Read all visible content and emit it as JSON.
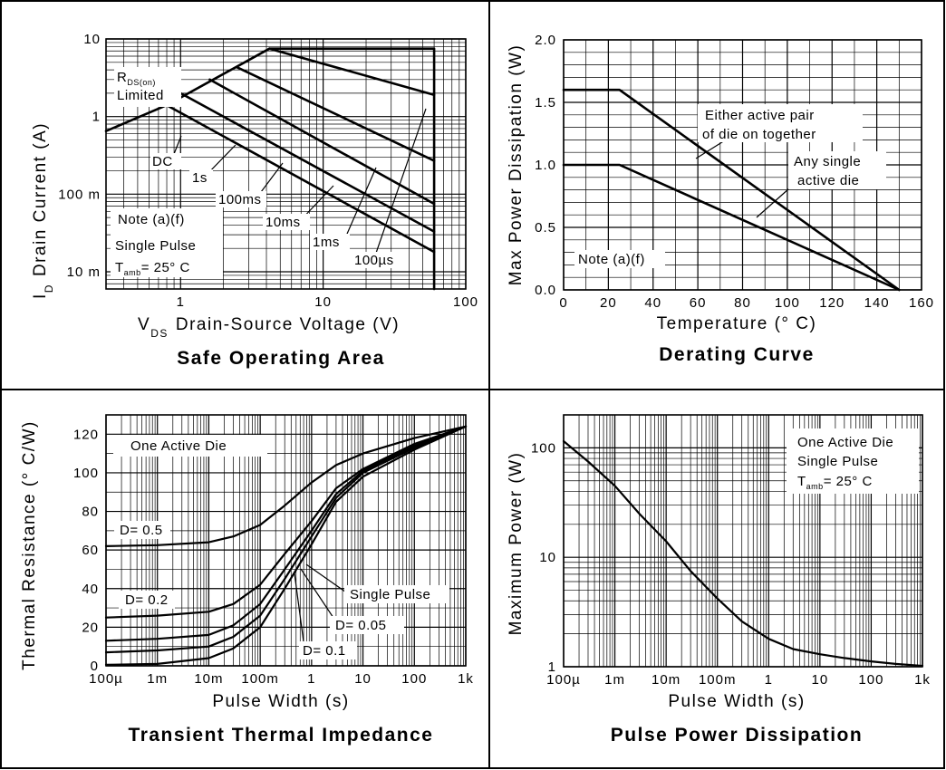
{
  "chart_data": [
    {
      "type": "line",
      "title": "Safe Operating Area",
      "xlabel_prefix": "V",
      "xlabel_sub": "DS",
      "xlabel": "Drain-Source Voltage (V)",
      "ylabel_prefix": "I",
      "ylabel_sub": "D",
      "ylabel": "Drain Current (A)",
      "xscale": "log",
      "yscale": "log",
      "xlim": [
        0.3,
        100
      ],
      "ylim": [
        0.006,
        10
      ],
      "x_ticks": [
        {
          "v": 1,
          "label": "1"
        },
        {
          "v": 10,
          "label": "10"
        },
        {
          "v": 100,
          "label": "100"
        }
      ],
      "y_ticks": [
        {
          "v": 10,
          "label": "10"
        },
        {
          "v": 1,
          "label": "1"
        },
        {
          "v": 0.1,
          "label": "100 m"
        },
        {
          "v": 0.01,
          "label": "10 m"
        }
      ],
      "series": [
        {
          "name": "DC",
          "x": [
            0.3,
            0.8,
            60
          ],
          "y": [
            0.65,
            1.4,
            0.018
          ]
        },
        {
          "name": "1s",
          "x": [
            1.0,
            60
          ],
          "y": [
            2.0,
            0.033
          ]
        },
        {
          "name": "100ms",
          "x": [
            1.6,
            60
          ],
          "y": [
            3.0,
            0.075
          ]
        },
        {
          "name": "10ms",
          "x": [
            2.5,
            60
          ],
          "y": [
            4.3,
            0.27
          ]
        },
        {
          "name": "1ms",
          "x": [
            4.2,
            60
          ],
          "y": [
            7.5,
            1.9
          ]
        },
        {
          "name": "100µs",
          "x": [
            4.2,
            60,
            60
          ],
          "y": [
            7.5,
            7.5,
            0.006
          ]
        },
        {
          "name": "RDS(on) Limited",
          "x": [
            0.8,
            4.2
          ],
          "y": [
            1.4,
            7.5
          ]
        }
      ],
      "annotations": {
        "rds_main": "R",
        "rds_sub": "DS(on)",
        "limited": "Limited",
        "dc": "DC",
        "s1": "1s",
        "ms100": "100ms",
        "ms10": "10ms",
        "ms1": "1ms",
        "us100": "100µs",
        "note": "Note (a)(f)",
        "single_pulse": "Single Pulse",
        "tamb_main": "T",
        "tamb_sub": "amb",
        "tamb_rest": "= 25° C"
      }
    },
    {
      "type": "line",
      "title": "Derating Curve",
      "xlabel": "Temperature (° C)",
      "ylabel": "Max Power Dissipation (W)",
      "xlim": [
        0,
        160
      ],
      "ylim": [
        0,
        2.0
      ],
      "x_ticks": [
        {
          "v": 0,
          "label": "0"
        },
        {
          "v": 20,
          "label": "20"
        },
        {
          "v": 40,
          "label": "40"
        },
        {
          "v": 60,
          "label": "60"
        },
        {
          "v": 80,
          "label": "80"
        },
        {
          "v": 100,
          "label": "100"
        },
        {
          "v": 120,
          "label": "120"
        },
        {
          "v": 140,
          "label": "140"
        },
        {
          "v": 160,
          "label": "160"
        }
      ],
      "y_ticks": [
        {
          "v": 0,
          "label": "0.0"
        },
        {
          "v": 0.5,
          "label": "0.5"
        },
        {
          "v": 1.0,
          "label": "1.0"
        },
        {
          "v": 1.5,
          "label": "1.5"
        },
        {
          "v": 2.0,
          "label": "2.0"
        }
      ],
      "series": [
        {
          "name": "Either active pair of die on together",
          "x": [
            0,
            25,
            150
          ],
          "y": [
            1.6,
            1.6,
            0
          ]
        },
        {
          "name": "Any single active die",
          "x": [
            0,
            25,
            150
          ],
          "y": [
            1.0,
            1.0,
            0
          ]
        }
      ],
      "annotations": {
        "pair_line1": "Either active pair",
        "pair_line2": "of die on together",
        "single_line1": "Any single",
        "single_line2": "active die",
        "note": "Note (a)(f)"
      }
    },
    {
      "type": "line",
      "title": "Transient Thermal Impedance",
      "xlabel": "Pulse Width (s)",
      "ylabel": "Thermal Resistance (° C/W)",
      "xscale": "log",
      "xlim": [
        0.0001,
        1000
      ],
      "ylim": [
        0,
        130
      ],
      "x_ticks": [
        {
          "v": 0.0001,
          "label": "100µ"
        },
        {
          "v": 0.001,
          "label": "1m"
        },
        {
          "v": 0.01,
          "label": "10m"
        },
        {
          "v": 0.1,
          "label": "100m"
        },
        {
          "v": 1,
          "label": "1"
        },
        {
          "v": 10,
          "label": "10"
        },
        {
          "v": 100,
          "label": "100"
        },
        {
          "v": 1000,
          "label": "1k"
        }
      ],
      "y_ticks": [
        {
          "v": 0,
          "label": "0"
        },
        {
          "v": 20,
          "label": "20"
        },
        {
          "v": 40,
          "label": "40"
        },
        {
          "v": 60,
          "label": "60"
        },
        {
          "v": 80,
          "label": "80"
        },
        {
          "v": 100,
          "label": "100"
        },
        {
          "v": 120,
          "label": "120"
        }
      ],
      "series": [
        {
          "name": "D= 0.5",
          "x": [
            0.0001,
            0.001,
            0.01,
            0.03,
            0.1,
            0.3,
            1,
            3,
            10,
            100,
            1000
          ],
          "y": [
            62,
            62.5,
            64,
            67,
            73,
            83,
            95,
            104,
            110,
            118,
            124
          ]
        },
        {
          "name": "D= 0.2",
          "x": [
            0.0001,
            0.001,
            0.01,
            0.03,
            0.1,
            0.3,
            1,
            3,
            10,
            100,
            1000
          ],
          "y": [
            25,
            26,
            28,
            32,
            42,
            58,
            75,
            92,
            102,
            115,
            124
          ]
        },
        {
          "name": "D= 0.1",
          "x": [
            0.0001,
            0.001,
            0.01,
            0.03,
            0.1,
            0.3,
            1,
            3,
            10,
            100,
            1000
          ],
          "y": [
            13,
            14,
            16,
            21,
            32,
            50,
            70,
            89,
            101,
            114,
            124
          ]
        },
        {
          "name": "D= 0.05",
          "x": [
            0.0001,
            0.001,
            0.01,
            0.03,
            0.1,
            0.3,
            1,
            3,
            10,
            100,
            1000
          ],
          "y": [
            7,
            8,
            10,
            15,
            26,
            45,
            67,
            87,
            100,
            113,
            124
          ]
        },
        {
          "name": "Single Pulse",
          "x": [
            0.0001,
            0.001,
            0.01,
            0.03,
            0.1,
            0.3,
            1,
            3,
            10,
            100,
            1000
          ],
          "y": [
            0.5,
            1,
            4,
            9,
            20,
            40,
            63,
            85,
            98,
            112,
            124
          ]
        }
      ],
      "annotations": {
        "box": "One Active Die",
        "d05": "D= 0.5",
        "d02": "D= 0.2",
        "d01": "D= 0.1",
        "d005": "D= 0.05",
        "single": "Single Pulse"
      }
    },
    {
      "type": "line",
      "title": "Pulse Power Dissipation",
      "xlabel": "Pulse Width (s)",
      "ylabel": "Maximum Power (W)",
      "xscale": "log",
      "yscale": "log",
      "xlim": [
        0.0001,
        1000
      ],
      "ylim": [
        1,
        200
      ],
      "x_ticks": [
        {
          "v": 0.0001,
          "label": "100µ"
        },
        {
          "v": 0.001,
          "label": "1m"
        },
        {
          "v": 0.01,
          "label": "10m"
        },
        {
          "v": 0.1,
          "label": "100m"
        },
        {
          "v": 1,
          "label": "1"
        },
        {
          "v": 10,
          "label": "10"
        },
        {
          "v": 100,
          "label": "100"
        },
        {
          "v": 1000,
          "label": "1k"
        }
      ],
      "y_ticks": [
        {
          "v": 1,
          "label": "1"
        },
        {
          "v": 10,
          "label": "10"
        },
        {
          "v": 100,
          "label": "100"
        }
      ],
      "series": [
        {
          "name": "Single Pulse",
          "x": [
            0.0001,
            0.0003,
            0.001,
            0.003,
            0.01,
            0.03,
            0.1,
            0.3,
            1,
            3,
            10,
            30,
            100,
            300,
            1000
          ],
          "y": [
            115,
            75,
            45,
            25,
            14,
            7.5,
            4.2,
            2.6,
            1.8,
            1.45,
            1.3,
            1.2,
            1.12,
            1.06,
            1.02
          ]
        }
      ],
      "annotations": {
        "line1": "One Active Die",
        "line2": "Single Pulse",
        "tamb_main": "T",
        "tamb_sub": "amb",
        "tamb_rest": "= 25° C"
      }
    }
  ]
}
